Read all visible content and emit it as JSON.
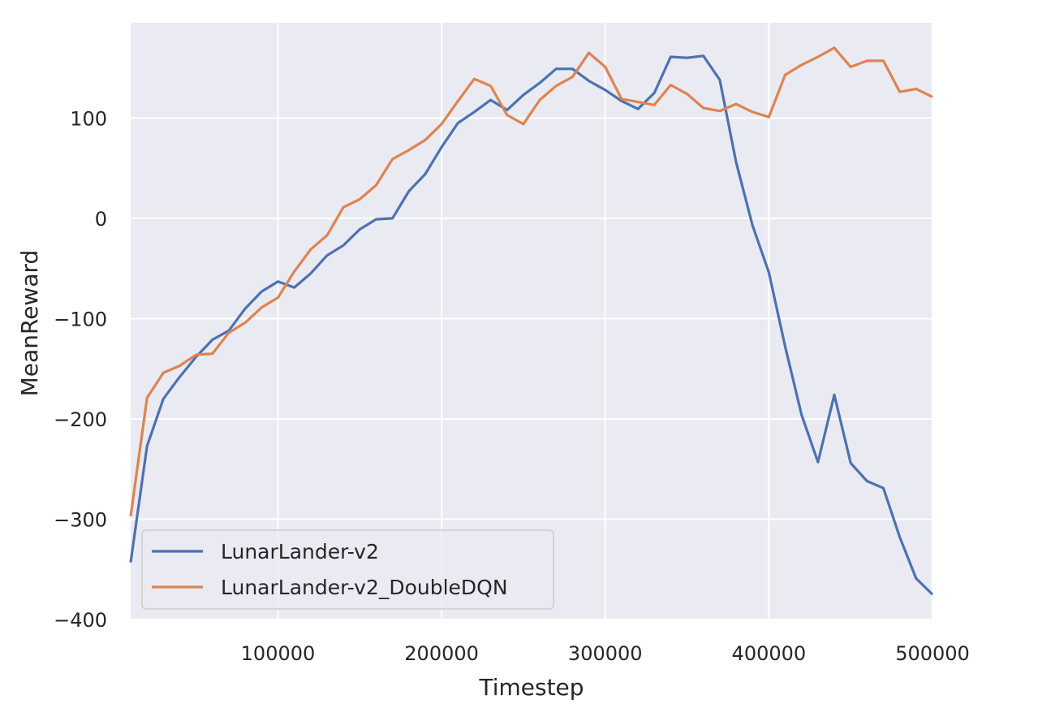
{
  "chart_data": {
    "type": "line",
    "xlabel": "Timestep",
    "ylabel": "MeanReward",
    "xlim": [
      10000,
      500000
    ],
    "ylim": [
      -400,
      195
    ],
    "x_ticks": [
      100000,
      200000,
      300000,
      400000,
      500000
    ],
    "y_ticks": [
      100,
      0,
      -100,
      -200,
      -300,
      -400
    ],
    "x_tick_labels": [
      "100000",
      "200000",
      "300000",
      "400000",
      "500000"
    ],
    "y_tick_labels": [
      "100",
      "0",
      "−100",
      "−200",
      "−300",
      "−400"
    ],
    "grid": true,
    "legend_position": "lower-left",
    "x": [
      10000,
      20000,
      30000,
      40000,
      50000,
      60000,
      70000,
      80000,
      90000,
      100000,
      110000,
      120000,
      130000,
      140000,
      150000,
      160000,
      170000,
      180000,
      190000,
      200000,
      210000,
      220000,
      230000,
      240000,
      250000,
      260000,
      270000,
      280000,
      290000,
      300000,
      310000,
      320000,
      330000,
      340000,
      350000,
      360000,
      370000,
      380000,
      390000,
      400000,
      410000,
      420000,
      430000,
      440000,
      450000,
      460000,
      470000,
      480000,
      490000,
      500000
    ],
    "series": [
      {
        "name": "LunarLander-v2",
        "color": "#4c72b0",
        "values": [
          -343,
          -227,
          -180,
          -158,
          -138,
          -121,
          -112,
          -90,
          -73,
          -63,
          -69,
          -55,
          -37,
          -27,
          -11,
          -1,
          0,
          27,
          44,
          71,
          95,
          106,
          118,
          108,
          123,
          135,
          149,
          149,
          137,
          128,
          117,
          109,
          125,
          161,
          160,
          162,
          138,
          56,
          -7,
          -54,
          -128,
          -196,
          -243,
          -176,
          -244,
          -262,
          -269,
          -318,
          -359,
          -375
        ]
      },
      {
        "name": "LunarLander-v2_DoubleDQN",
        "color": "#dd8452",
        "values": [
          -297,
          -179,
          -154,
          -147,
          -136,
          -135,
          -114,
          -104,
          -89,
          -79,
          -53,
          -31,
          -17,
          11,
          19,
          33,
          59,
          68,
          78,
          94,
          117,
          139,
          132,
          103,
          94,
          118,
          132,
          141,
          165,
          151,
          119,
          116,
          113,
          133,
          124,
          110,
          107,
          114,
          106,
          101,
          143,
          153,
          161,
          170,
          151,
          157,
          157,
          126,
          129,
          121
        ]
      }
    ]
  }
}
